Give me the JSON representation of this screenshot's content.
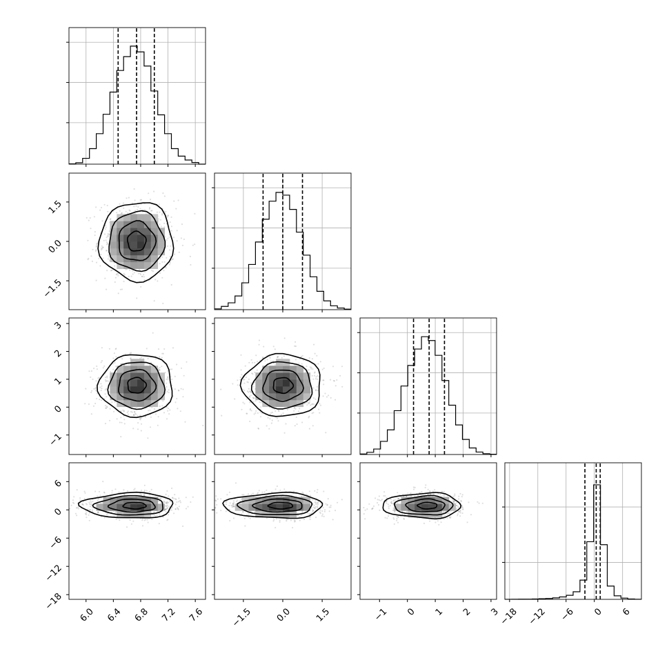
{
  "chart_data": {
    "type": "corner",
    "parameters": 4,
    "grid": true,
    "colors": {
      "line": "#000000",
      "grid": "#b0b0b0",
      "scatter": "#9a9a9a"
    },
    "axes": [
      {
        "range": [
          5.75,
          7.75
        ],
        "ticks": [
          6.0,
          6.4,
          6.8,
          7.2,
          7.6
        ],
        "tick_labels": [
          "6.0",
          "6.4",
          "6.8",
          "7.2",
          "7.6"
        ],
        "quantiles": [
          6.47,
          6.74,
          7.0
        ]
      },
      {
        "range": [
          -2.6,
          2.6
        ],
        "ticks": [
          -1.5,
          0.0,
          1.5
        ],
        "tick_labels": [
          "−1.5",
          "0.0",
          "1.5"
        ],
        "quantiles": [
          -0.75,
          0.0,
          0.75
        ]
      },
      {
        "range": [
          -1.7,
          3.2
        ],
        "ticks": [
          -1,
          0,
          1,
          2,
          3
        ],
        "tick_labels": [
          "−1",
          "0",
          "1",
          "2",
          "3"
        ],
        "quantiles": [
          0.22,
          0.78,
          1.33
        ]
      },
      {
        "range": [
          -19,
          10
        ],
        "ticks": [
          -18,
          -12,
          -6,
          0,
          6
        ],
        "tick_labels": [
          "−18",
          "−12",
          "−6",
          "0",
          "6"
        ],
        "quantiles": [
          -2.0,
          0.4,
          1.25
        ]
      }
    ],
    "histograms": [
      {
        "edges": [
          5.75,
          5.85,
          5.95,
          6.05,
          6.15,
          6.25,
          6.35,
          6.45,
          6.55,
          6.65,
          6.75,
          6.85,
          6.95,
          7.05,
          7.15,
          7.25,
          7.35,
          7.45,
          7.55,
          7.65,
          7.75
        ],
        "counts": [
          1,
          5,
          21,
          56,
          110,
          180,
          260,
          338,
          388,
          426,
          405,
          354,
          264,
          178,
          110,
          56,
          29,
          15,
          6,
          0
        ],
        "max": 440
      },
      {
        "edges": [
          -2.6,
          -2.34,
          -2.08,
          -1.82,
          -1.56,
          -1.3,
          -1.04,
          -0.78,
          -0.52,
          -0.26,
          0.0,
          0.26,
          0.52,
          0.78,
          1.04,
          1.3,
          1.56,
          1.82,
          2.08,
          2.34,
          2.6
        ],
        "counts": [
          3,
          12,
          25,
          50,
          98,
          165,
          247,
          330,
          396,
          428,
          418,
          366,
          283,
          199,
          120,
          67,
          32,
          14,
          6,
          2
        ],
        "max": 445
      },
      {
        "edges": [
          -1.7,
          -1.455,
          -1.21,
          -0.965,
          -0.72,
          -0.475,
          -0.23,
          0.015,
          0.26,
          0.505,
          0.75,
          0.995,
          1.24,
          1.485,
          1.73,
          1.975,
          2.22,
          2.465,
          2.71,
          2.955,
          3.2
        ],
        "counts": [
          2,
          8,
          20,
          48,
          90,
          160,
          250,
          325,
          385,
          430,
          416,
          362,
          270,
          180,
          108,
          55,
          24,
          9,
          3,
          1
        ],
        "max": 445
      },
      {
        "edges": [
          -19,
          -17.55,
          -16.1,
          -14.65,
          -13.2,
          -11.75,
          -10.3,
          -8.85,
          -7.4,
          -5.95,
          -4.5,
          -3.05,
          -1.6,
          -0.15,
          1.3,
          2.75,
          4.2,
          5.65,
          7.1,
          8.55,
          10
        ],
        "counts": [
          1,
          2,
          4,
          6,
          10,
          16,
          24,
          40,
          66,
          110,
          205,
          520,
          1560,
          3100,
          1480,
          360,
          96,
          34,
          10,
          3
        ],
        "max": 3300
      }
    ],
    "pairs": [
      {
        "x_param": 0,
        "y_param": 1,
        "center": [
          6.74,
          0.0
        ],
        "sigma": [
          0.27,
          0.75
        ],
        "skew_left": 1.0
      },
      {
        "x_param": 0,
        "y_param": 2,
        "center": [
          6.74,
          0.78
        ],
        "sigma": [
          0.27,
          0.56
        ],
        "skew_left": 1.0
      },
      {
        "x_param": 1,
        "y_param": 2,
        "center": [
          0.0,
          0.78
        ],
        "sigma": [
          0.75,
          0.56
        ],
        "skew_left": 1.0
      },
      {
        "x_param": 0,
        "y_param": 3,
        "center": [
          6.74,
          0.9
        ],
        "sigma": [
          0.27,
          1.35
        ],
        "skew_left": 1.5
      },
      {
        "x_param": 1,
        "y_param": 3,
        "center": [
          0.0,
          0.9
        ],
        "sigma": [
          0.75,
          1.35
        ],
        "skew_left": 1.5
      },
      {
        "x_param": 2,
        "y_param": 3,
        "center": [
          0.78,
          0.9
        ],
        "sigma": [
          0.56,
          1.35
        ],
        "skew_left": 1.5
      }
    ],
    "contour_levels_sigma": [
      0.5,
      1.0,
      1.5,
      2.0
    ]
  }
}
